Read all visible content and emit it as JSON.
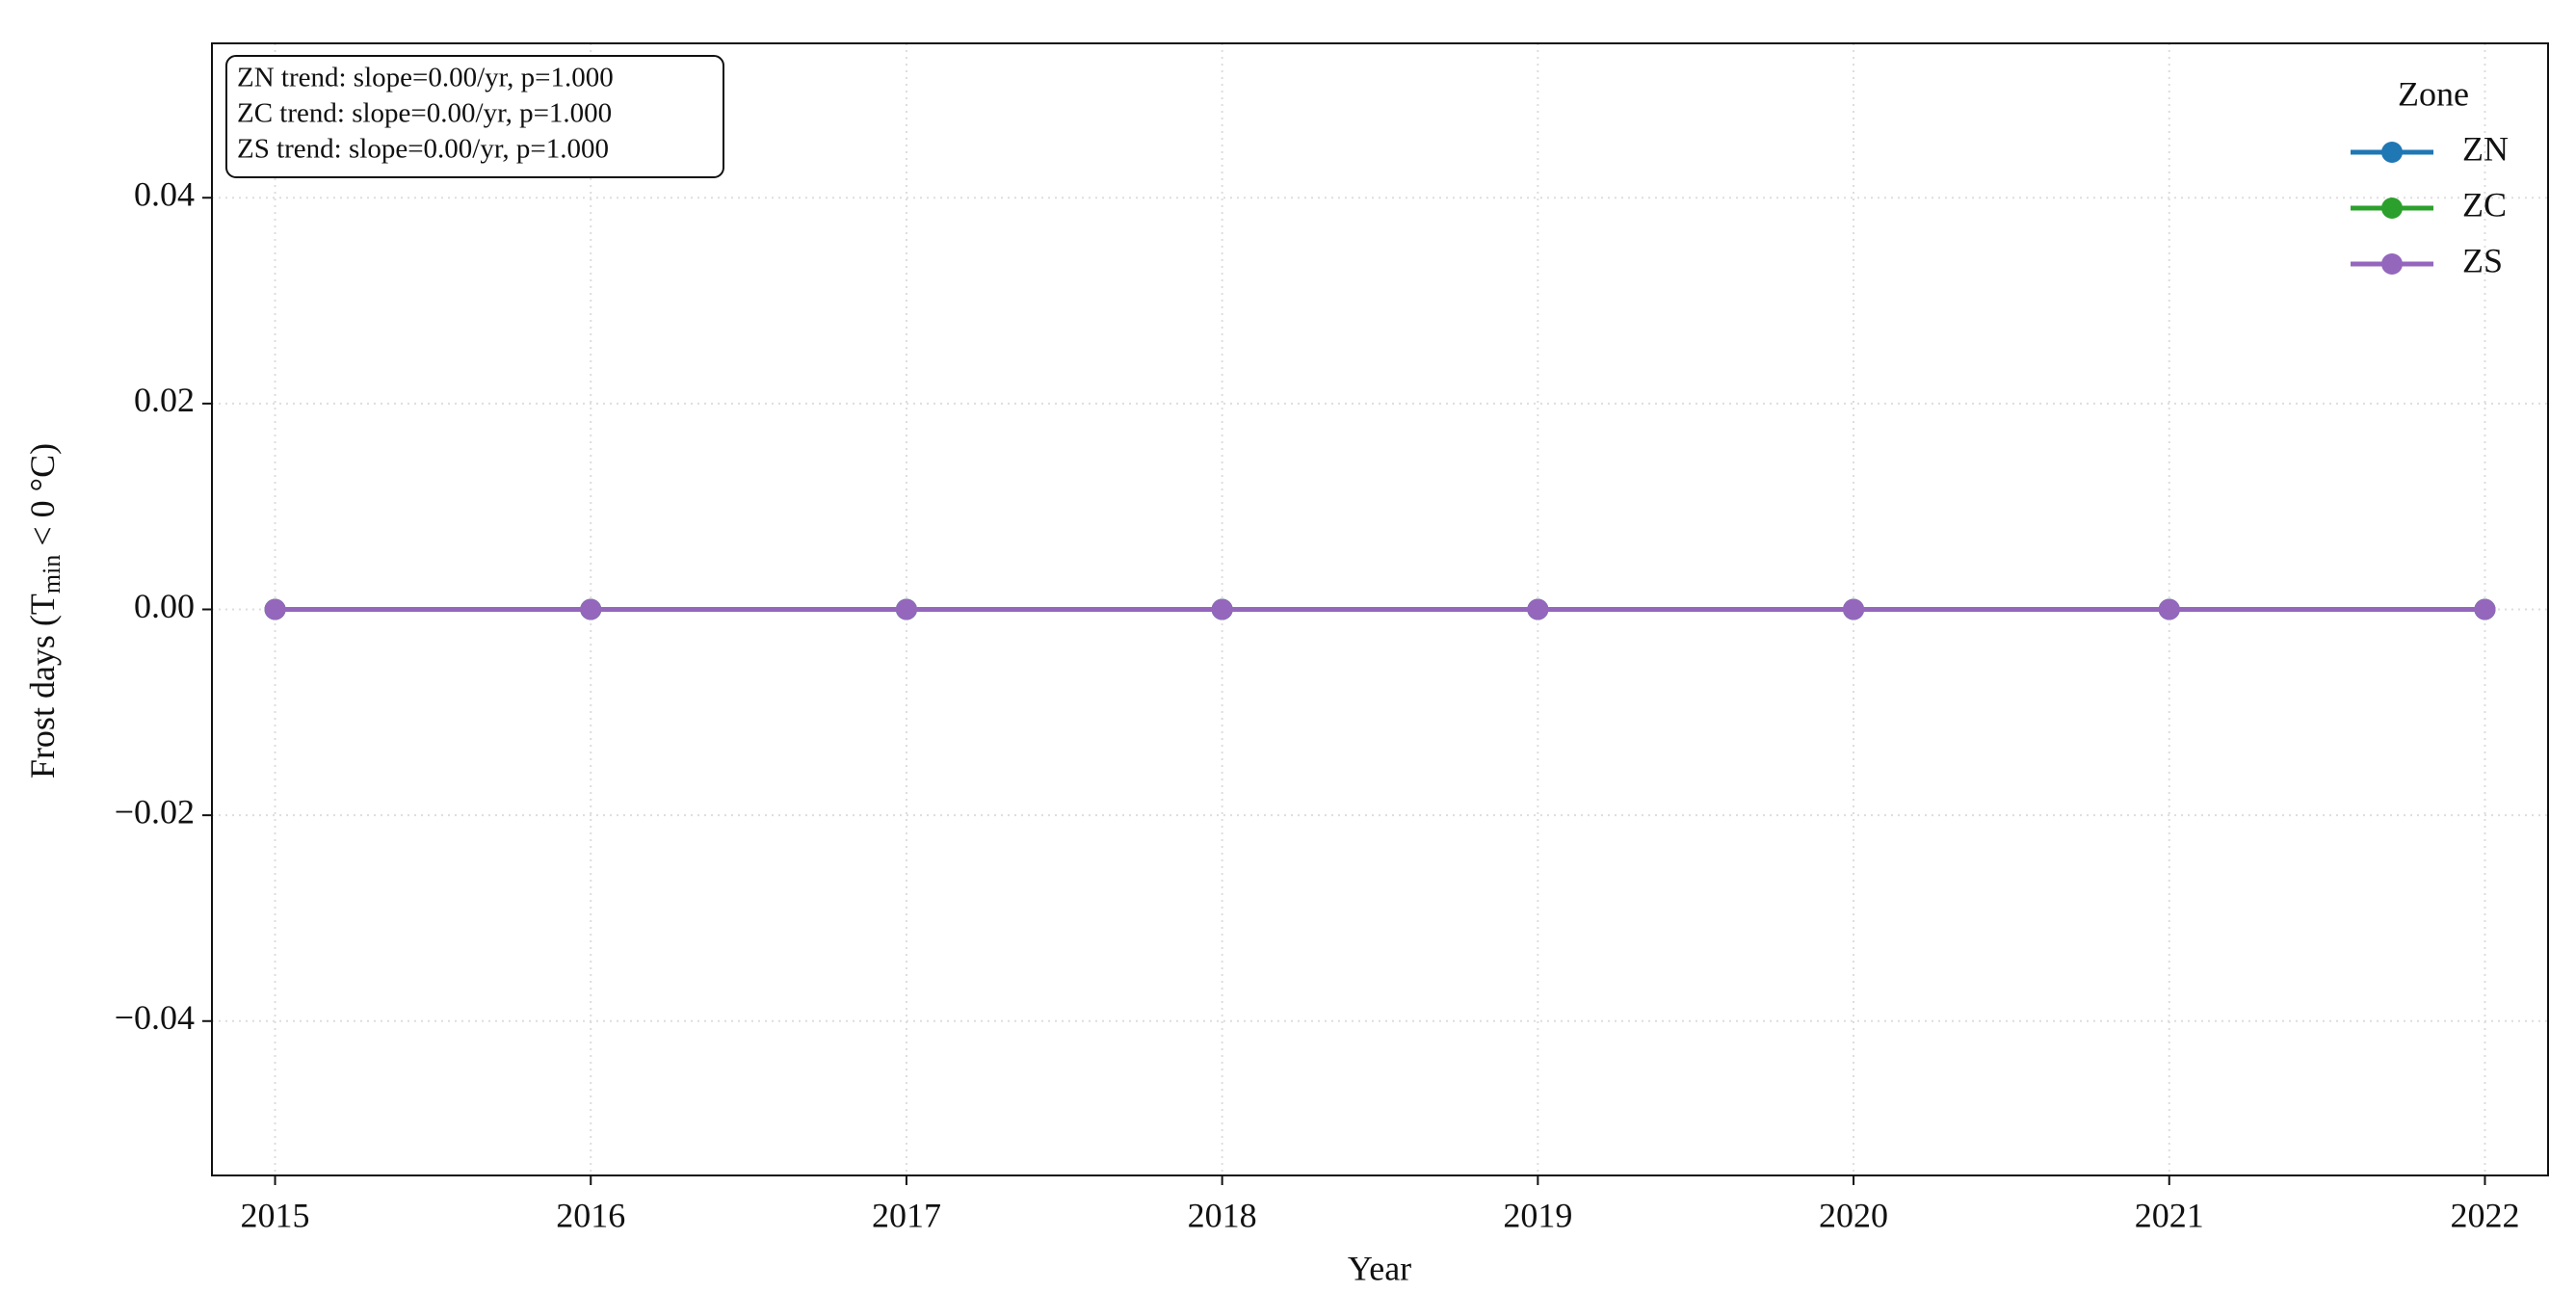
{
  "chart_data": {
    "type": "line",
    "xlabel": "Year",
    "ylabel": "Frost days (T",
    "ylabel_sub": "min",
    "ylabel_end": " < 0 °C)",
    "annotations": [
      "ZN trend: slope=0.00/yr, p=1.000",
      "ZC trend: slope=0.00/yr, p=1.000",
      "ZS trend: slope=0.00/yr, p=1.000"
    ],
    "legend_title": "Zone",
    "legend": "upper right",
    "grid": true,
    "x": [
      2015,
      2016,
      2017,
      2018,
      2019,
      2020,
      2021,
      2022
    ],
    "series": [
      {
        "name": "ZN",
        "color": "#1f77b4",
        "values": [
          0,
          0,
          0,
          0,
          0,
          0,
          0,
          0
        ]
      },
      {
        "name": "ZC",
        "color": "#2ca02c",
        "values": [
          0,
          0,
          0,
          0,
          0,
          0,
          0,
          0
        ]
      },
      {
        "name": "ZS",
        "color": "#9467bd",
        "values": [
          0,
          0,
          0,
          0,
          0,
          0,
          0,
          0
        ]
      }
    ],
    "xlim": [
      2014.8,
      2022.2
    ],
    "xticks": [
      2015,
      2016,
      2017,
      2018,
      2019,
      2020,
      2021,
      2022
    ],
    "ylim": [
      -0.055,
      0.055
    ],
    "yticks": [
      {
        "value": -0.04,
        "label": "−0.04"
      },
      {
        "value": -0.02,
        "label": "−0.02"
      },
      {
        "value": 0,
        "label": "0.00"
      },
      0.02,
      0.04
    ]
  }
}
